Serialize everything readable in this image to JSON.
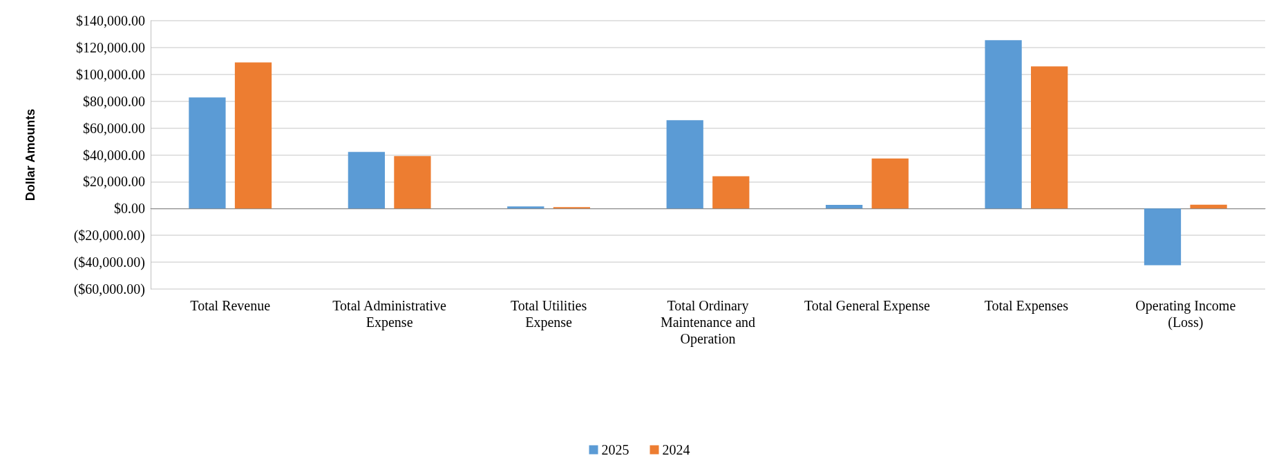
{
  "chart_data": {
    "type": "bar",
    "ylabel": "Dollar Amounts",
    "categories": [
      "Total Revenue",
      "Total Administrative Expense",
      "Total Utilities Expense",
      "Total Ordinary Maintenance and Operation",
      "Total General Expense",
      "Total Expenses",
      "Operating Income (Loss)"
    ],
    "series": [
      {
        "name": "2025",
        "color": "#5b9bd5",
        "values": [
          82800,
          42200,
          1600,
          65800,
          2700,
          125500,
          -42200
        ]
      },
      {
        "name": "2024",
        "color": "#ed7d31",
        "values": [
          108900,
          39100,
          1100,
          24000,
          37300,
          105900,
          2900
        ]
      }
    ],
    "ylim": [
      -60000,
      140000
    ],
    "yticks": [
      {
        "value": -60000,
        "label": "($60,000.00)"
      },
      {
        "value": -40000,
        "label": "($40,000.00)"
      },
      {
        "value": -20000,
        "label": "($20,000.00)"
      },
      {
        "value": 0,
        "label": "$0.00"
      },
      {
        "value": 20000,
        "label": "$20,000.00"
      },
      {
        "value": 40000,
        "label": "$40,000.00"
      },
      {
        "value": 60000,
        "label": "$60,000.00"
      },
      {
        "value": 80000,
        "label": "$80,000.00"
      },
      {
        "value": 100000,
        "label": "$100,000.00"
      },
      {
        "value": 120000,
        "label": "$120,000.00"
      },
      {
        "value": 140000,
        "label": "$140,000.00"
      }
    ],
    "grid": "y",
    "legend": "bottom"
  }
}
